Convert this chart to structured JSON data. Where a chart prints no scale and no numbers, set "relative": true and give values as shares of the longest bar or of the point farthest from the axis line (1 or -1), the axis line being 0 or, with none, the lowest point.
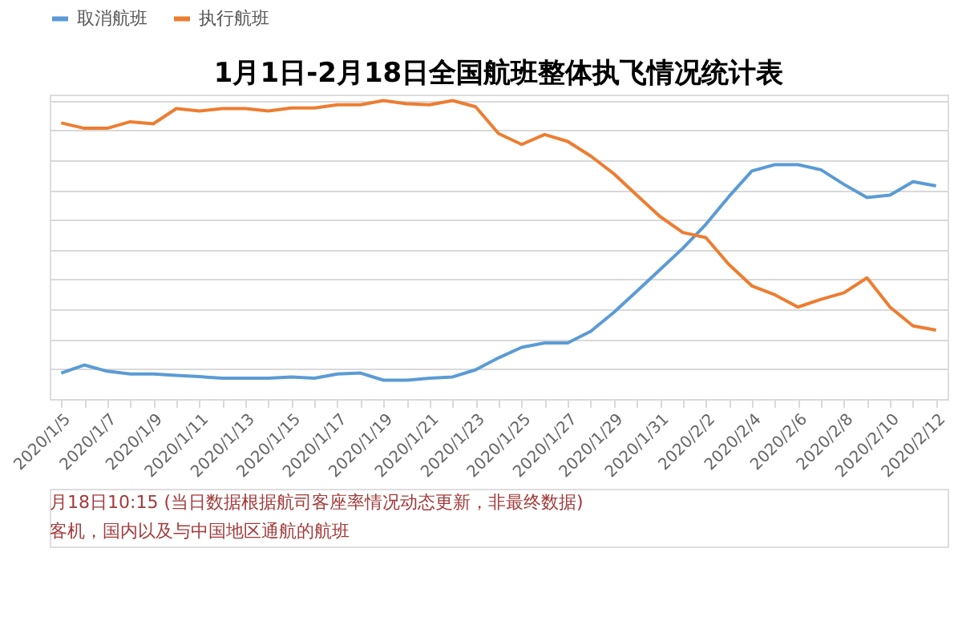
{
  "chart_data": {
    "type": "line",
    "title": "1月1日-2月18日全国航班整体执飞情况统计表",
    "relative": true,
    "grid": "y",
    "legend": "top",
    "marker": "none",
    "line_style": "solid",
    "categories": [
      "2020/1/5",
      null,
      "2020/1/7",
      null,
      "2020/1/9",
      null,
      "2020/1/11",
      null,
      "2020/1/13",
      null,
      "2020/1/15",
      null,
      "2020/1/17",
      null,
      "2020/1/19",
      null,
      "2020/1/21",
      null,
      "2020/1/23",
      null,
      "2020/1/25",
      null,
      "2020/1/27",
      null,
      "2020/1/29",
      null,
      "2020/1/31",
      null,
      "2020/2/2",
      null,
      "2020/2/4",
      null,
      "2020/2/6",
      null,
      "2020/2/8",
      null,
      "2020/2/10",
      null,
      "2020/2/12"
    ],
    "series": [
      {
        "name": "取消航班",
        "color": "#5b9bd5",
        "values": [
          0.087,
          0.114,
          0.093,
          0.084,
          0.084,
          0.079,
          0.075,
          0.07,
          0.07,
          0.07,
          0.074,
          0.07,
          0.084,
          0.087,
          0.063,
          0.063,
          0.07,
          0.074,
          0.098,
          0.138,
          0.173,
          0.188,
          0.188,
          0.227,
          0.29,
          0.361,
          0.433,
          0.505,
          0.585,
          0.678,
          0.764,
          0.785,
          0.785,
          0.768,
          0.719,
          0.675,
          0.683,
          0.728,
          0.714
        ]
      },
      {
        "name": "执行航班",
        "color": "#ed7d31",
        "values": [
          0.925,
          0.907,
          0.907,
          0.929,
          0.922,
          0.973,
          0.965,
          0.973,
          0.973,
          0.965,
          0.975,
          0.975,
          0.986,
          0.986,
          1,
          0.989,
          0.986,
          1,
          0.979,
          0.889,
          0.853,
          0.886,
          0.863,
          0.814,
          0.755,
          0.683,
          0.612,
          0.558,
          0.541,
          0.451,
          0.379,
          0.349,
          0.308,
          0.334,
          0.356,
          0.406,
          0.308,
          0.245,
          0.231
        ]
      }
    ],
    "annotations": [
      "月18日10:15 (当日数据根据航司客座率情况动态更新，非最终数据)",
      "客机，国内以及与中国地区通航的航班"
    ]
  }
}
